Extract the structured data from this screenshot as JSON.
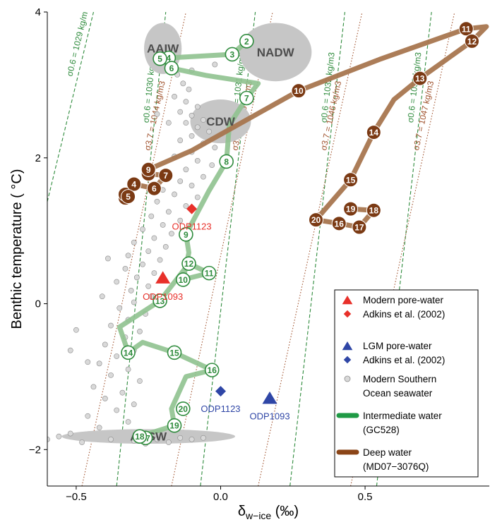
{
  "chart_data": {
    "type": "scatter",
    "xlabel_main": "δ",
    "xlabel_sub": "w−ice",
    "xlabel_unit": " (‰)",
    "ylabel": "Benthic temperature ( °C)",
    "xlim": [
      -0.6,
      0.93
    ],
    "ylim": [
      -2.5,
      4
    ],
    "x_ticks": [
      -0.5,
      0.0,
      0.5
    ],
    "x_tick_labels": [
      "−0.5",
      "0.0",
      "0.5"
    ],
    "y_ticks": [
      -2,
      0,
      2,
      4
    ],
    "y_tick_labels": [
      "−2",
      "0",
      "2",
      "4"
    ],
    "colors": {
      "intermediate": "#8fc28f",
      "intermediate_label": "#2e8b3c",
      "deep": "#a8764f",
      "deep_marker": "#7b3a14",
      "modern": "#e8302a",
      "lgm": "#2f46a6",
      "seawater_fill": "#d9d9d9",
      "seawater_stroke": "#8c8c8c",
      "water_mass": "#c6c6c6",
      "sigma06": "#2e8b3c",
      "sigma37": "#a0522d"
    },
    "water_masses": [
      {
        "label": "AAIW",
        "x": -0.2,
        "y": 3.5,
        "rx": 0.065,
        "ry": 0.35
      },
      {
        "label": "NADW",
        "x": 0.19,
        "y": 3.45,
        "rx": 0.125,
        "ry": 0.4
      },
      {
        "label": "CDW",
        "x": 0.0,
        "y": 2.5,
        "rx": 0.105,
        "ry": 0.3
      },
      {
        "label": "AASW",
        "x": -0.25,
        "y": -1.82,
        "rx": 0.3,
        "ry": 0.1
      }
    ],
    "isopycnals": [
      {
        "label": "σ0.6 = 1029 kg/m3",
        "family": "sigma06",
        "x1": -0.6,
        "y1": 1.4,
        "x2": -0.44,
        "y2": 4.0
      },
      {
        "label": "σ0.6 = 1030 kg/m3",
        "family": "sigma06",
        "x1": -0.36,
        "y1": -2.5,
        "x2": -0.19,
        "y2": 4.0
      },
      {
        "label": "σ0.6 = 1031 kg/m3",
        "family": "sigma06",
        "x1": -0.07,
        "y1": -2.5,
        "x2": 0.12,
        "y2": 4.0
      },
      {
        "label": "σ0.6 = 1032 kg/m3",
        "family": "sigma06",
        "x1": 0.24,
        "y1": -2.5,
        "x2": 0.43,
        "y2": 4.0
      },
      {
        "label": "σ0.6 = 1033 kg/m3",
        "family": "sigma06",
        "x1": 0.54,
        "y1": -2.5,
        "x2": 0.73,
        "y2": 4.0
      },
      {
        "label": "σ3.7 = 1044 kg/m3",
        "family": "sigma37",
        "x1": -0.48,
        "y1": -2.5,
        "x2": -0.12,
        "y2": 4.0
      },
      {
        "label": "σ3.7 = 1045 kg/m3",
        "family": "sigma37",
        "x1": -0.17,
        "y1": -2.5,
        "x2": 0.18,
        "y2": 4.0
      },
      {
        "label": "σ3.7 = 1046 kg/m3",
        "family": "sigma37",
        "x1": 0.13,
        "y1": -2.5,
        "x2": 0.49,
        "y2": 4.0
      },
      {
        "label": "σ3.7 = 1047 kg/m3",
        "family": "sigma37",
        "x1": 0.45,
        "y1": -2.5,
        "x2": 0.81,
        "y2": 4.0
      }
    ],
    "series": [
      {
        "name": "Intermediate water (GC528)",
        "points": [
          {
            "id": "2",
            "x": 0.09,
            "y": 3.6
          },
          {
            "id": "3",
            "x": 0.04,
            "y": 3.42
          },
          {
            "id": "4",
            "x": -0.18,
            "y": 3.37
          },
          {
            "id": "5",
            "x": -0.21,
            "y": 3.36
          },
          {
            "id": "6",
            "x": -0.17,
            "y": 3.23
          },
          {
            "id": "7",
            "x": 0.09,
            "y": 2.82
          },
          {
            "id": "8",
            "x": 0.02,
            "y": 1.95
          },
          {
            "id": "9",
            "x": -0.12,
            "y": 0.95
          },
          {
            "id": "10",
            "x": -0.13,
            "y": 0.33
          },
          {
            "id": "11",
            "x": -0.04,
            "y": 0.42
          },
          {
            "id": "12",
            "x": -0.11,
            "y": 0.55
          },
          {
            "id": "13",
            "x": -0.21,
            "y": 0.04
          },
          {
            "id": "14",
            "x": -0.32,
            "y": -0.67
          },
          {
            "id": "15",
            "x": -0.16,
            "y": -0.67
          },
          {
            "id": "16",
            "x": -0.03,
            "y": -0.91
          },
          {
            "id": "17",
            "x": -0.26,
            "y": -1.84
          },
          {
            "id": "18",
            "x": -0.28,
            "y": -1.82
          },
          {
            "id": "19",
            "x": -0.16,
            "y": -1.67
          },
          {
            "id": "20",
            "x": -0.13,
            "y": -1.44
          }
        ],
        "path": [
          [
            0.09,
            3.6
          ],
          [
            0.04,
            3.42
          ],
          [
            -0.18,
            3.37
          ],
          [
            -0.21,
            3.36
          ],
          [
            -0.17,
            3.23
          ],
          [
            -0.05,
            3.13
          ],
          [
            0.13,
            3.02
          ],
          [
            0.09,
            2.82
          ],
          [
            0.03,
            2.45
          ],
          [
            0.02,
            1.95
          ],
          [
            -0.04,
            1.55
          ],
          [
            -0.12,
            0.95
          ],
          [
            -0.11,
            0.7
          ],
          [
            -0.13,
            0.33
          ],
          [
            -0.04,
            0.42
          ],
          [
            -0.11,
            0.55
          ],
          [
            -0.21,
            0.04
          ],
          [
            -0.35,
            -0.32
          ],
          [
            -0.32,
            -0.67
          ],
          [
            -0.27,
            -0.53
          ],
          [
            -0.16,
            -0.67
          ],
          [
            -0.03,
            -0.91
          ],
          [
            -0.12,
            -1.0
          ],
          [
            -0.17,
            -1.44
          ],
          [
            -0.16,
            -1.67
          ],
          [
            -0.28,
            -1.82
          ],
          [
            -0.26,
            -1.84
          ]
        ]
      },
      {
        "name": "Deep water (MD07−3076Q)",
        "points": [
          {
            "id": "2",
            "x": -0.33,
            "y": 1.45
          },
          {
            "id": "3",
            "x": -0.33,
            "y": 1.5
          },
          {
            "id": "4",
            "x": -0.3,
            "y": 1.64
          },
          {
            "id": "5",
            "x": -0.32,
            "y": 1.47
          },
          {
            "id": "6",
            "x": -0.23,
            "y": 1.58
          },
          {
            "id": "7",
            "x": -0.19,
            "y": 1.76
          },
          {
            "id": "8",
            "x": -0.25,
            "y": 1.78
          },
          {
            "id": "9",
            "x": -0.25,
            "y": 1.84
          },
          {
            "id": "10",
            "x": 0.27,
            "y": 2.92
          },
          {
            "id": "11",
            "x": 0.85,
            "y": 3.77
          },
          {
            "id": "12",
            "x": 0.87,
            "y": 3.6
          },
          {
            "id": "13",
            "x": 0.69,
            "y": 3.09
          },
          {
            "id": "14",
            "x": 0.53,
            "y": 2.35
          },
          {
            "id": "15",
            "x": 0.45,
            "y": 1.7
          },
          {
            "id": "16",
            "x": 0.41,
            "y": 1.1
          },
          {
            "id": "17",
            "x": 0.48,
            "y": 1.05
          },
          {
            "id": "18",
            "x": 0.53,
            "y": 1.28
          },
          {
            "id": "19",
            "x": 0.45,
            "y": 1.3
          },
          {
            "id": "20",
            "x": 0.33,
            "y": 1.15
          }
        ],
        "path": [
          [
            -0.33,
            1.45
          ],
          [
            -0.32,
            1.47
          ],
          [
            -0.33,
            1.5
          ],
          [
            -0.3,
            1.64
          ],
          [
            -0.23,
            1.58
          ],
          [
            -0.19,
            1.76
          ],
          [
            -0.25,
            1.78
          ],
          [
            -0.25,
            1.84
          ],
          [
            -0.1,
            2.1
          ],
          [
            0.27,
            2.92
          ],
          [
            0.55,
            3.35
          ],
          [
            0.85,
            3.77
          ],
          [
            0.92,
            3.8
          ],
          [
            0.87,
            3.6
          ],
          [
            0.69,
            3.09
          ],
          [
            0.6,
            2.8
          ],
          [
            0.53,
            2.35
          ],
          [
            0.45,
            1.7
          ],
          [
            0.33,
            1.15
          ],
          [
            0.41,
            1.1
          ],
          [
            0.48,
            1.05
          ],
          [
            0.53,
            1.28
          ],
          [
            0.45,
            1.3
          ]
        ]
      }
    ],
    "markers": [
      {
        "name": "Modern pore-water ODP1093",
        "label": "ODP1093",
        "shape": "triangle",
        "color": "modern",
        "x": -0.2,
        "y": 0.35,
        "lx": -0.2,
        "ly": 0.17
      },
      {
        "name": "Modern pore-water ODP1123",
        "label": "ODP1123",
        "shape": "diamond",
        "color": "modern",
        "x": -0.1,
        "y": 1.3,
        "lx": -0.1,
        "ly": 1.13
      },
      {
        "name": "LGM pore-water ODP1123",
        "label": "ODP1123",
        "shape": "diamond",
        "color": "lgm",
        "x": 0.0,
        "y": -1.2,
        "lx": 0.0,
        "ly": -1.37
      },
      {
        "name": "LGM pore-water ODP1093",
        "label": "ODP1093",
        "shape": "triangle",
        "color": "lgm",
        "x": 0.17,
        "y": -1.3,
        "lx": 0.17,
        "ly": -1.47
      }
    ],
    "seawater_points": [
      [
        -0.1,
        3.2
      ],
      [
        -0.13,
        3.02
      ],
      [
        -0.11,
        2.94
      ],
      [
        -0.16,
        2.84
      ],
      [
        -0.12,
        2.77
      ],
      [
        -0.08,
        2.7
      ],
      [
        -0.14,
        2.63
      ],
      [
        -0.1,
        2.58
      ],
      [
        -0.06,
        2.52
      ],
      [
        -0.12,
        2.48
      ],
      [
        -0.08,
        2.42
      ],
      [
        -0.04,
        2.36
      ],
      [
        -0.1,
        2.3
      ],
      [
        -0.14,
        2.24
      ],
      [
        -0.06,
        2.2
      ],
      [
        -0.02,
        2.14
      ],
      [
        -0.1,
        2.08
      ],
      [
        -0.16,
        2.02
      ],
      [
        -0.08,
        1.96
      ],
      [
        -0.03,
        1.9
      ],
      [
        -0.12,
        1.84
      ],
      [
        -0.18,
        1.78
      ],
      [
        -0.06,
        1.74
      ],
      [
        -0.14,
        1.68
      ],
      [
        -0.1,
        1.62
      ],
      [
        -0.2,
        1.56
      ],
      [
        -0.16,
        1.5
      ],
      [
        -0.08,
        1.46
      ],
      [
        -0.22,
        1.4
      ],
      [
        -0.12,
        1.34
      ],
      [
        -0.18,
        1.26
      ],
      [
        -0.24,
        1.2
      ],
      [
        -0.14,
        1.14
      ],
      [
        -0.2,
        1.08
      ],
      [
        -0.27,
        1.02
      ],
      [
        -0.17,
        0.96
      ],
      [
        -0.23,
        0.9
      ],
      [
        -0.3,
        0.84
      ],
      [
        -0.19,
        0.78
      ],
      [
        -0.25,
        0.72
      ],
      [
        -0.32,
        0.66
      ],
      [
        -0.21,
        0.6
      ],
      [
        -0.27,
        0.54
      ],
      [
        -0.33,
        0.48
      ],
      [
        -0.23,
        0.42
      ],
      [
        -0.29,
        0.36
      ],
      [
        -0.36,
        0.3
      ],
      [
        -0.25,
        0.24
      ],
      [
        -0.31,
        0.18
      ],
      [
        -0.24,
        0.1
      ],
      [
        -0.3,
        0.02
      ],
      [
        -0.35,
        -0.06
      ],
      [
        -0.26,
        -0.14
      ],
      [
        -0.32,
        -0.22
      ],
      [
        -0.38,
        -0.3
      ],
      [
        -0.28,
        -0.38
      ],
      [
        -0.33,
        -0.46
      ],
      [
        -0.4,
        -0.56
      ],
      [
        -0.3,
        -0.64
      ],
      [
        -0.36,
        -0.72
      ],
      [
        -0.42,
        -0.82
      ],
      [
        -0.32,
        -0.9
      ],
      [
        -0.38,
        -0.98
      ],
      [
        -0.28,
        -1.06
      ],
      [
        -0.44,
        -1.14
      ],
      [
        -0.34,
        -1.22
      ],
      [
        -0.4,
        -1.3
      ],
      [
        -0.3,
        -1.38
      ],
      [
        -0.36,
        -1.46
      ],
      [
        -0.46,
        -1.54
      ],
      [
        -0.32,
        -1.62
      ],
      [
        -0.42,
        -1.7
      ],
      [
        -0.52,
        -1.78
      ],
      [
        -0.38,
        -1.86
      ],
      [
        -0.48,
        -1.9
      ],
      [
        -0.3,
        -1.88
      ],
      [
        -0.22,
        -1.86
      ],
      [
        -0.14,
        -1.84
      ],
      [
        -0.18,
        -1.9
      ],
      [
        -0.26,
        -1.92
      ],
      [
        -0.56,
        -1.82
      ],
      [
        -0.6,
        -1.86
      ],
      [
        -0.5,
        -0.36
      ],
      [
        -0.46,
        -0.8
      ],
      [
        -0.41,
        0.1
      ],
      [
        -0.39,
        0.62
      ],
      [
        -0.22,
        2.6
      ],
      [
        -0.18,
        2.48
      ],
      [
        -0.02,
        3.28
      ],
      [
        -0.15,
        3.14
      ],
      [
        -0.52,
        -0.64
      ],
      [
        -0.1,
        -1.86
      ],
      [
        -0.06,
        -1.84
      ]
    ],
    "legend": [
      {
        "symbol": "triangle",
        "color": "modern",
        "label": "Modern pore-water"
      },
      {
        "symbol": "diamond",
        "color": "modern",
        "label": "Adkins et al. (2002)"
      },
      {
        "symbol": "triangle",
        "color": "lgm",
        "label": "LGM pore-water"
      },
      {
        "symbol": "diamond",
        "color": "lgm",
        "label": "Adkins et al. (2002)"
      },
      {
        "symbol": "circle",
        "color": "seawater",
        "label": "Modern Southern"
      },
      {
        "symbol": "none",
        "color": "",
        "label": "Ocean seawater"
      },
      {
        "symbol": "line",
        "color": "intermediate_line",
        "label": "Intermediate water"
      },
      {
        "symbol": "none",
        "color": "",
        "label": "(GC528)"
      },
      {
        "symbol": "line",
        "color": "deep_line",
        "label": "Deep water"
      },
      {
        "symbol": "none",
        "color": "",
        "label": "(MD07−3076Q)"
      }
    ]
  }
}
